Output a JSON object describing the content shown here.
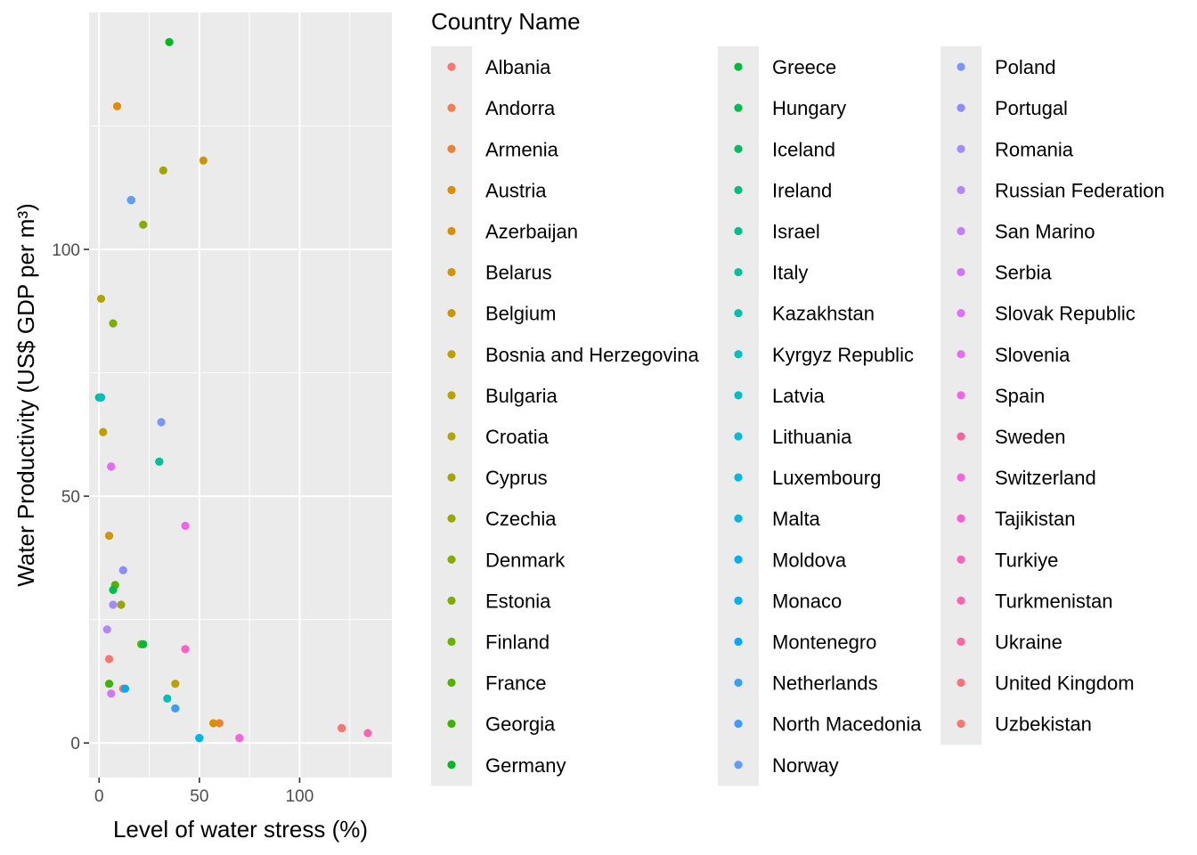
{
  "chart_data": {
    "type": "scatter",
    "xlabel": "Level of water stress (%)",
    "ylabel": "Water Productivity (US$ GDP per m³)",
    "xlim": [
      -5,
      146
    ],
    "ylim": [
      -7,
      148
    ],
    "x_ticks": [
      0,
      50,
      100
    ],
    "y_ticks": [
      0,
      50,
      100
    ],
    "x_tick_labels": [
      "0",
      "50",
      "100"
    ],
    "y_tick_labels": [
      "0",
      "50",
      "100"
    ],
    "grid": true,
    "legend": {
      "title": "Country Name",
      "placement": "right",
      "columns": 3
    },
    "series": [
      {
        "name": "Albania",
        "color": "#F8766D",
        "x": 5,
        "y": 17
      },
      {
        "name": "Andorra",
        "color": "#F27D52",
        "x": 12,
        "y": 11
      },
      {
        "name": "Armenia",
        "color": "#EA8331",
        "x": 60,
        "y": 4
      },
      {
        "name": "Austria",
        "color": "#E08B00",
        "x": 9,
        "y": 129
      },
      {
        "name": "Azerbaijan",
        "color": "#D89000",
        "x": 57,
        "y": 4
      },
      {
        "name": "Belarus",
        "color": "#D19500",
        "x": 5,
        "y": 42
      },
      {
        "name": "Belgium",
        "color": "#C99800",
        "x": 52,
        "y": 118
      },
      {
        "name": "Bosnia and Herzegovina",
        "color": "#C19D00",
        "x": 2,
        "y": 63
      },
      {
        "name": "Bulgaria",
        "color": "#B9A100",
        "x": 38,
        "y": 12
      },
      {
        "name": "Croatia",
        "color": "#B0A500",
        "x": 1,
        "y": 90
      },
      {
        "name": "Cyprus",
        "color": "#A3A500",
        "x": 32,
        "y": 116
      },
      {
        "name": "Czechia",
        "color": "#95A900",
        "x": 11,
        "y": 28
      },
      {
        "name": "Denmark",
        "color": "#86AC00",
        "x": 22,
        "y": 105
      },
      {
        "name": "Estonia",
        "color": "#7CAE00",
        "x": 7,
        "y": 85
      },
      {
        "name": "Finland",
        "color": "#6BB100",
        "x": 21,
        "y": 20
      },
      {
        "name": "France",
        "color": "#53B400",
        "x": 8,
        "y": 32
      },
      {
        "name": "Georgia",
        "color": "#39B600",
        "x": 5,
        "y": 12
      },
      {
        "name": "Germany",
        "color": "#00B81F",
        "x": 35,
        "y": 142
      },
      {
        "name": "Greece",
        "color": "#00BA38",
        "x": 22,
        "y": 20
      },
      {
        "name": "Hungary",
        "color": "#00BB4E",
        "x": 7,
        "y": 31
      },
      {
        "name": "Iceland",
        "color": "#00BD5F",
        "x": 1,
        "y": 70
      },
      {
        "name": "Ireland",
        "color": "#00BF7D",
        "x": 0,
        "y": 70
      },
      {
        "name": "Israel",
        "color": "#00C08B",
        "x": 30,
        "y": 57
      },
      {
        "name": "Italy",
        "color": "#00C19A",
        "x": 30,
        "y": 57
      },
      {
        "name": "Kazakhstan",
        "color": "#00C0B2",
        "x": 34,
        "y": 9
      },
      {
        "name": "Kyrgyz Republic",
        "color": "#00BFC4",
        "x": 50,
        "y": 1
      },
      {
        "name": "Latvia",
        "color": "#00BDCC",
        "x": 1,
        "y": 70
      },
      {
        "name": "Lithuania",
        "color": "#00BCD8",
        "x": 50,
        "y": 1
      },
      {
        "name": "Luxembourg",
        "color": "#00B9E3",
        "x": 16,
        "y": 110
      },
      {
        "name": "Malta",
        "color": "#00B6EB",
        "x": 50,
        "y": 1
      },
      {
        "name": "Moldova",
        "color": "#00B0F6",
        "x": 38,
        "y": 7
      },
      {
        "name": "Monaco",
        "color": "#00ADFA",
        "x": 16,
        "y": 110
      },
      {
        "name": "Montenegro",
        "color": "#00A9FF",
        "x": 13,
        "y": 11
      },
      {
        "name": "Netherlands",
        "color": "#35A2FF",
        "x": 16,
        "y": 110
      },
      {
        "name": "North Macedonia",
        "color": "#3A9DFF",
        "x": 38,
        "y": 7
      },
      {
        "name": "Norway",
        "color": "#619CFF",
        "x": 16,
        "y": 110
      },
      {
        "name": "Poland",
        "color": "#7995FF",
        "x": 31,
        "y": 65
      },
      {
        "name": "Portugal",
        "color": "#8E8CFF",
        "x": 12,
        "y": 35
      },
      {
        "name": "Romania",
        "color": "#A58AFF",
        "x": 7,
        "y": 28
      },
      {
        "name": "Russian Federation",
        "color": "#B385FF",
        "x": 4,
        "y": 23
      },
      {
        "name": "San Marino",
        "color": "#C77CFF",
        "x": 6,
        "y": 56
      },
      {
        "name": "Serbia",
        "color": "#D177F5",
        "x": 6,
        "y": 10
      },
      {
        "name": "Slovak Republic",
        "color": "#DE71F9",
        "x": 6,
        "y": 56
      },
      {
        "name": "Slovenia",
        "color": "#E66DF2",
        "x": 6,
        "y": 56
      },
      {
        "name": "Spain",
        "color": "#F164E8",
        "x": 43,
        "y": 44
      },
      {
        "name": "Sweden",
        "color": "#F8629F",
        "x": 70,
        "y": 1
      },
      {
        "name": "Switzerland",
        "color": "#F962DD",
        "x": 70,
        "y": 1
      },
      {
        "name": "Tajikistan",
        "color": "#FC5FD0",
        "x": 43,
        "y": 19
      },
      {
        "name": "Turkiye",
        "color": "#FF61C3",
        "x": 43,
        "y": 19
      },
      {
        "name": "Turkmenistan",
        "color": "#FF64B0",
        "x": 134,
        "y": 2
      },
      {
        "name": "Ukraine",
        "color": "#FF67A4",
        "x": 121,
        "y": 3
      },
      {
        "name": "United Kingdom",
        "color": "#FC717F",
        "x": 121,
        "y": 3
      },
      {
        "name": "Uzbekistan",
        "color": "#F8766D",
        "x": 121,
        "y": 3
      }
    ]
  }
}
